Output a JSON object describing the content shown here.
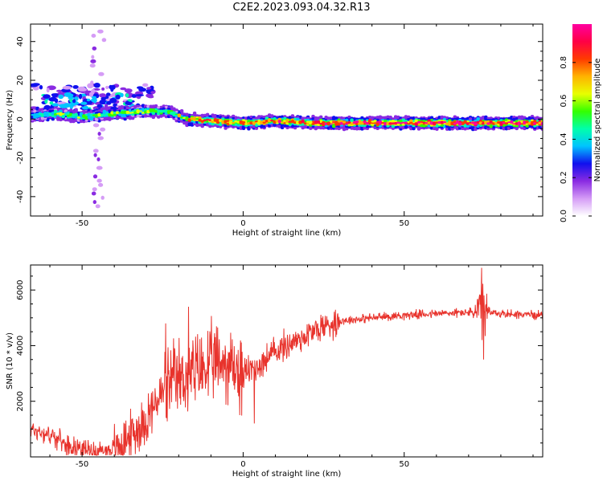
{
  "title": "C2E2.2023.093.04.32.R13",
  "colors": {
    "frame": "#000000",
    "snr_line": "#e8332c",
    "spectro_bg": "#ffffff"
  },
  "chart_data": [
    {
      "type": "heatmap",
      "name": "spectrogram",
      "xlabel": "Height of straight line (km)",
      "ylabel": "Frequency (Hz)",
      "xlim": [
        -66,
        93
      ],
      "ylim": [
        -50,
        49
      ],
      "xticks": [
        -50,
        0,
        50
      ],
      "xtick_labels": [
        "-50",
        "0",
        "50"
      ],
      "yticks": [
        -40,
        -20,
        0,
        20,
        40
      ],
      "ytick_labels": [
        "-40",
        "-20",
        "0",
        "20",
        "40"
      ],
      "colorbar": {
        "label": "Normalized spectral amplitude",
        "range": [
          0,
          1
        ],
        "ticks": [
          0.0,
          0.2,
          0.4,
          0.6,
          0.8
        ],
        "tick_labels": [
          "0.0",
          "0.2",
          "0.4",
          "0.6",
          "0.8"
        ],
        "stops": [
          "#ffffff",
          "#d59cf6",
          "#8a2be2",
          "#1010ee",
          "#00c4ff",
          "#00ffaa",
          "#33ff00",
          "#e8ff00",
          "#ffb300",
          "#ff3b00",
          "#ff0045",
          "#ff00a0"
        ]
      },
      "ridge": [
        {
          "x": -66,
          "y": 2,
          "a": 0.45
        },
        {
          "x": -60,
          "y": 3,
          "a": 0.5
        },
        {
          "x": -50,
          "y": 1,
          "a": 0.5
        },
        {
          "x": -40,
          "y": 3,
          "a": 0.55
        },
        {
          "x": -30,
          "y": 4,
          "a": 0.55
        },
        {
          "x": -24,
          "y": 4,
          "a": 0.5
        },
        {
          "x": -18,
          "y": 0,
          "a": 0.65
        },
        {
          "x": -10,
          "y": -1,
          "a": 0.8
        },
        {
          "x": 0,
          "y": -2,
          "a": 0.75
        },
        {
          "x": 10,
          "y": -1,
          "a": 0.8
        },
        {
          "x": 20,
          "y": -2,
          "a": 0.75
        },
        {
          "x": 30,
          "y": -2,
          "a": 0.85
        },
        {
          "x": 50,
          "y": -2,
          "a": 0.9
        },
        {
          "x": 70,
          "y": -2,
          "a": 0.9
        },
        {
          "x": 93,
          "y": -2,
          "a": 0.9
        }
      ],
      "scatter_band": {
        "x_from": -66,
        "x_to": -28,
        "y_from": 0,
        "y_to": 18
      },
      "vertical_streak": {
        "x": -45,
        "y_from": -45,
        "y_to": 48
      }
    },
    {
      "type": "line",
      "name": "snr",
      "xlabel": "Height of straight line (km)",
      "ylabel": "SNR (10 * v/v)",
      "xlim": [
        -66,
        93
      ],
      "ylim": [
        0,
        6900
      ],
      "xticks": [
        -50,
        0,
        50
      ],
      "xtick_labels": [
        "-50",
        "0",
        "50"
      ],
      "yticks": [
        2000,
        4000,
        6000
      ],
      "ytick_labels": [
        "2000",
        "4000",
        "6000"
      ],
      "envelope": [
        {
          "x": -66,
          "y": 1000
        },
        {
          "x": -60,
          "y": 800
        },
        {
          "x": -55,
          "y": 450
        },
        {
          "x": -50,
          "y": 300
        },
        {
          "x": -45,
          "y": 200
        },
        {
          "x": -40,
          "y": 300
        },
        {
          "x": -35,
          "y": 700
        },
        {
          "x": -30,
          "y": 1400
        },
        {
          "x": -25,
          "y": 2300
        },
        {
          "x": -20,
          "y": 2800
        },
        {
          "x": -15,
          "y": 3000
        },
        {
          "x": -10,
          "y": 3300
        },
        {
          "x": -5,
          "y": 3400
        },
        {
          "x": 0,
          "y": 3000
        },
        {
          "x": 5,
          "y": 3300
        },
        {
          "x": 10,
          "y": 3800
        },
        {
          "x": 15,
          "y": 4100
        },
        {
          "x": 20,
          "y": 4400
        },
        {
          "x": 25,
          "y": 4700
        },
        {
          "x": 30,
          "y": 4900
        },
        {
          "x": 40,
          "y": 5000
        },
        {
          "x": 50,
          "y": 5100
        },
        {
          "x": 60,
          "y": 5150
        },
        {
          "x": 70,
          "y": 5200
        },
        {
          "x": 80,
          "y": 5150
        },
        {
          "x": 93,
          "y": 5100
        }
      ],
      "spikes": [
        {
          "x": -24,
          "y": 4800
        },
        {
          "x": -17,
          "y": 5400
        },
        {
          "x": 74,
          "y": 6800
        },
        {
          "x": 74.6,
          "y": 3500
        },
        {
          "x": -1,
          "y": 1500
        },
        {
          "x": 3.5,
          "y": 1200
        }
      ]
    }
  ]
}
